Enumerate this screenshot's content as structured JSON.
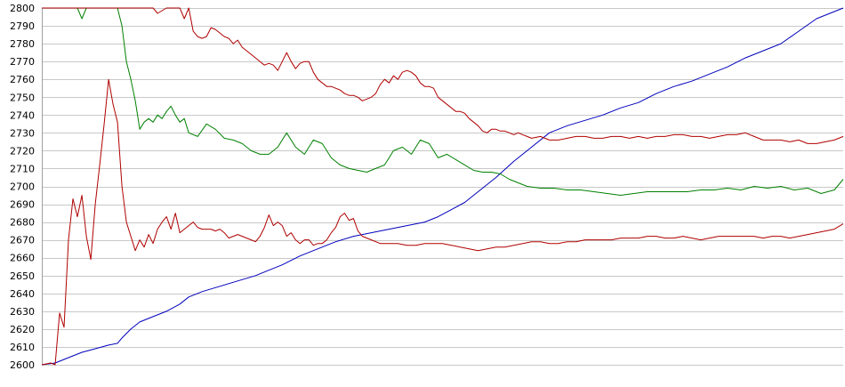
{
  "chart_data": {
    "type": "line",
    "title": "",
    "xlabel": "",
    "ylabel": "",
    "ylim": [
      2600,
      2800
    ],
    "yticks": [
      2600,
      2610,
      2620,
      2630,
      2640,
      2650,
      2660,
      2670,
      2680,
      2690,
      2700,
      2710,
      2720,
      2730,
      2740,
      2750,
      2760,
      2770,
      2780,
      2790,
      2800
    ],
    "xlim": [
      0,
      900
    ],
    "grid": "horizontal",
    "legend": "none",
    "series": [
      {
        "color": "#0000bb",
        "x": [
          0,
          15,
          30,
          45,
          60,
          75,
          85,
          90,
          100,
          110,
          125,
          140,
          155,
          165,
          180,
          200,
          220,
          240,
          255,
          270,
          290,
          310,
          330,
          350,
          370,
          390,
          410,
          430,
          445,
          460,
          475,
          490,
          510,
          530,
          550,
          570,
          590,
          610,
          630,
          650,
          670,
          690,
          710,
          730,
          750,
          770,
          790,
          810,
          830,
          850,
          870,
          900
        ],
        "y": [
          2600,
          2601,
          2604,
          2607,
          2609,
          2611,
          2612,
          2615,
          2620,
          2624,
          2627,
          2630,
          2634,
          2638,
          2641,
          2644,
          2647,
          2650,
          2653,
          2656,
          2661,
          2665,
          2669,
          2672,
          2674,
          2676,
          2678,
          2680,
          2683,
          2687,
          2691,
          2697,
          2705,
          2714,
          2722,
          2730,
          2734,
          2737,
          2740,
          2744,
          2747,
          2752,
          2756,
          2759,
          2763,
          2767,
          2772,
          2776,
          2780,
          2787,
          2794,
          2800
        ]
      },
      {
        "color": "#008000",
        "x": [
          0,
          40,
          45,
          50,
          55,
          60,
          75,
          80,
          85,
          90,
          95,
          100,
          105,
          110,
          115,
          120,
          125,
          130,
          135,
          140,
          145,
          150,
          155,
          160,
          165,
          175,
          185,
          195,
          205,
          215,
          225,
          235,
          245,
          255,
          265,
          275,
          285,
          295,
          305,
          315,
          325,
          335,
          345,
          355,
          365,
          375,
          385,
          395,
          405,
          415,
          425,
          435,
          445,
          455,
          465,
          475,
          485,
          495,
          505,
          515,
          525,
          535,
          545,
          560,
          575,
          590,
          605,
          620,
          635,
          650,
          665,
          680,
          695,
          710,
          725,
          740,
          755,
          770,
          785,
          800,
          815,
          830,
          845,
          860,
          875,
          890,
          900
        ],
        "y": [
          2800,
          2800,
          2794,
          2800,
          2800,
          2800,
          2800,
          2800,
          2800,
          2790,
          2770,
          2760,
          2748,
          2732,
          2736,
          2738,
          2736,
          2740,
          2738,
          2742,
          2745,
          2740,
          2736,
          2738,
          2730,
          2728,
          2735,
          2732,
          2727,
          2726,
          2724,
          2720,
          2718,
          2718,
          2722,
          2730,
          2722,
          2718,
          2726,
          2724,
          2716,
          2712,
          2710,
          2709,
          2708,
          2710,
          2712,
          2720,
          2722,
          2718,
          2726,
          2724,
          2716,
          2718,
          2715,
          2712,
          2709,
          2708,
          2708,
          2707,
          2704,
          2702,
          2700,
          2699,
          2699,
          2698,
          2698,
          2697,
          2696,
          2695,
          2696,
          2697,
          2697,
          2697,
          2697,
          2698,
          2698,
          2699,
          2698,
          2700,
          2699,
          2700,
          2698,
          2699,
          2696,
          2698,
          2704
        ]
      },
      {
        "color": "#b00000",
        "x": [
          0,
          10,
          15,
          20,
          25,
          30,
          35,
          40,
          45,
          50,
          55,
          60,
          65,
          70,
          75,
          80,
          85,
          90,
          95,
          100,
          105,
          110,
          115,
          120,
          125,
          130,
          135,
          140,
          145,
          150,
          155,
          160,
          165,
          170,
          175,
          180,
          185,
          190,
          195,
          200,
          205,
          210,
          215,
          220,
          225,
          230,
          235,
          240,
          245,
          250,
          255,
          260,
          265,
          270,
          275,
          280,
          285,
          290,
          295,
          300,
          305,
          310,
          315,
          320,
          325,
          330,
          335,
          340,
          345,
          350,
          355,
          360,
          370,
          380,
          390,
          400,
          410,
          420,
          430,
          440,
          450,
          460,
          470,
          480,
          490,
          500,
          510,
          520,
          530,
          540,
          550,
          560,
          570,
          580,
          590,
          600,
          610,
          620,
          630,
          640,
          650,
          660,
          670,
          680,
          690,
          700,
          710,
          720,
          730,
          740,
          750,
          760,
          770,
          780,
          790,
          800,
          810,
          820,
          830,
          840,
          850,
          860,
          870,
          880,
          890,
          900
        ],
        "y": [
          2600,
          2601,
          2600,
          2629,
          2621,
          2670,
          2693,
          2683,
          2695,
          2672,
          2659,
          2690,
          2712,
          2735,
          2760,
          2746,
          2736,
          2700,
          2680,
          2672,
          2664,
          2670,
          2666,
          2673,
          2668,
          2676,
          2680,
          2683,
          2676,
          2685,
          2674,
          2676,
          2678,
          2680,
          2677,
          2676,
          2676,
          2676,
          2675,
          2676,
          2674,
          2671,
          2672,
          2673,
          2672,
          2671,
          2670,
          2669,
          2672,
          2677,
          2684,
          2678,
          2680,
          2678,
          2672,
          2674,
          2670,
          2668,
          2670,
          2670,
          2667,
          2668,
          2668,
          2670,
          2674,
          2677,
          2683,
          2685,
          2681,
          2682,
          2675,
          2672,
          2670,
          2668,
          2668,
          2668,
          2667,
          2667,
          2668,
          2668,
          2668,
          2667,
          2666,
          2665,
          2664,
          2665,
          2666,
          2666,
          2667,
          2668,
          2669,
          2669,
          2668,
          2668,
          2669,
          2669,
          2670,
          2670,
          2670,
          2670,
          2671,
          2671,
          2671,
          2672,
          2672,
          2671,
          2671,
          2672,
          2671,
          2670,
          2671,
          2672,
          2672,
          2672,
          2672,
          2672,
          2671,
          2672,
          2672,
          2671,
          2672,
          2673,
          2674,
          2675,
          2676,
          2679
        ]
      },
      {
        "color": "#b00000",
        "x": [
          0,
          125,
          130,
          140,
          150,
          155,
          160,
          165,
          170,
          175,
          180,
          185,
          190,
          195,
          200,
          205,
          210,
          215,
          220,
          225,
          230,
          235,
          240,
          245,
          250,
          255,
          260,
          265,
          270,
          275,
          280,
          285,
          290,
          295,
          300,
          305,
          310,
          315,
          320,
          325,
          330,
          335,
          340,
          345,
          350,
          355,
          360,
          365,
          370,
          375,
          380,
          385,
          390,
          395,
          400,
          405,
          410,
          415,
          420,
          425,
          430,
          435,
          440,
          445,
          450,
          455,
          460,
          465,
          470,
          475,
          480,
          485,
          490,
          495,
          500,
          505,
          510,
          515,
          520,
          525,
          530,
          535,
          540,
          545,
          550,
          560,
          570,
          580,
          590,
          600,
          610,
          620,
          630,
          640,
          650,
          660,
          670,
          680,
          690,
          700,
          710,
          720,
          730,
          740,
          750,
          760,
          770,
          780,
          790,
          800,
          810,
          820,
          830,
          840,
          850,
          860,
          870,
          880,
          890,
          900
        ],
        "y": [
          2800,
          2800,
          2797,
          2800,
          2800,
          2800,
          2794,
          2800,
          2787,
          2784,
          2783,
          2784,
          2789,
          2788,
          2786,
          2784,
          2783,
          2780,
          2782,
          2778,
          2776,
          2774,
          2772,
          2770,
          2768,
          2769,
          2768,
          2765,
          2770,
          2775,
          2770,
          2766,
          2769,
          2770,
          2770,
          2764,
          2760,
          2758,
          2756,
          2756,
          2755,
          2754,
          2752,
          2751,
          2751,
          2750,
          2748,
          2749,
          2750,
          2752,
          2757,
          2760,
          2758,
          2762,
          2760,
          2764,
          2765,
          2764,
          2762,
          2758,
          2756,
          2756,
          2755,
          2750,
          2748,
          2746,
          2744,
          2742,
          2742,
          2741,
          2738,
          2736,
          2734,
          2731,
          2730,
          2732,
          2732,
          2731,
          2731,
          2730,
          2729,
          2730,
          2729,
          2728,
          2727,
          2728,
          2726,
          2726,
          2727,
          2728,
          2728,
          2727,
          2727,
          2728,
          2728,
          2727,
          2728,
          2727,
          2728,
          2728,
          2729,
          2729,
          2728,
          2728,
          2727,
          2728,
          2729,
          2729,
          2730,
          2728,
          2726,
          2726,
          2726,
          2725,
          2726,
          2724,
          2724,
          2725,
          2726,
          2728
        ]
      }
    ]
  }
}
